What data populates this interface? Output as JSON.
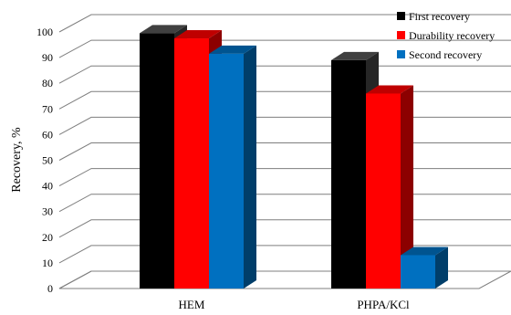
{
  "chart_data": {
    "type": "bar",
    "subtype": "3d-clustered-column",
    "categories": [
      "HEM",
      "PHPA/KCl"
    ],
    "series": [
      {
        "name": "First recovery",
        "values": [
          99.5,
          89
        ],
        "color": "#000000"
      },
      {
        "name": "Durability recovery",
        "values": [
          97.5,
          76
        ],
        "color": "#ff0000"
      },
      {
        "name": "Second recovery",
        "values": [
          91.5,
          13
        ],
        "color": "#0070c0"
      }
    ],
    "ylabel": "Recovery, %",
    "xlabel": "",
    "ylim": [
      0,
      100
    ],
    "yticks": [
      "0",
      "10",
      "20",
      "30",
      "40",
      "50",
      "60",
      "70",
      "80",
      "90",
      "100"
    ],
    "grid": true,
    "legend_position": "top-right"
  }
}
